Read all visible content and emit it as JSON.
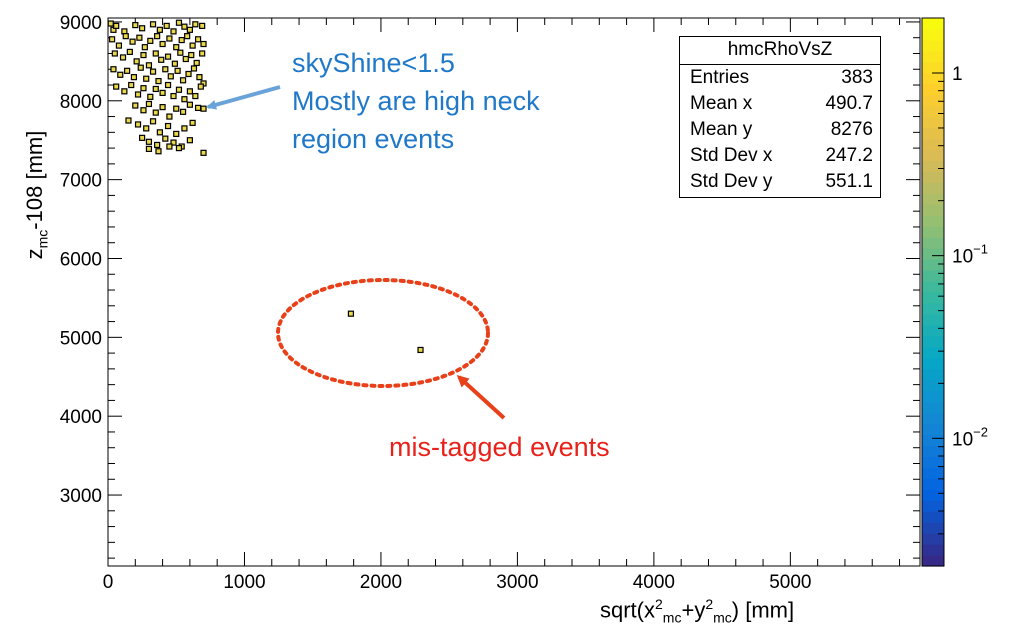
{
  "annotations": {
    "skyshine_line1": "skyShine<1.5",
    "skyshine_line2": "Mostly are high neck",
    "skyshine_line3": "region events",
    "mistagged": "mis-tagged events",
    "arrow_blue_color": "#6aa3d9",
    "arrow_red_color": "#e8411a",
    "ellipse_color": "#e8411a"
  },
  "stats_box": {
    "title": "hmcRhoVsZ",
    "rows": [
      {
        "label": "Entries",
        "value": "383"
      },
      {
        "label": "Mean x",
        "value": "490.7"
      },
      {
        "label": "Mean y",
        "value": "8276"
      },
      {
        "label": "Std Dev x",
        "value": "247.2"
      },
      {
        "label": "Std Dev y",
        "value": "551.1"
      }
    ]
  },
  "chart_data": {
    "type": "scatter",
    "title": "",
    "xlabel": {
      "main": "sqrt(x",
      "sup1": "2",
      "sub1": "mc",
      "mid": "+y",
      "sup2": "2",
      "sub2": "mc",
      "end": ") [mm]"
    },
    "ylabel": {
      "main": "z",
      "sub": "mc",
      "end": "-108 [mm]"
    },
    "xlim": [
      0,
      5950
    ],
    "ylim": [
      2100,
      9050
    ],
    "x_ticks": [
      0,
      1000,
      2000,
      3000,
      4000,
      5000
    ],
    "x_tick_labels": [
      "0",
      "1000",
      "2000",
      "3000",
      "4000",
      "5000"
    ],
    "y_ticks": [
      3000,
      4000,
      5000,
      6000,
      7000,
      8000,
      9000
    ],
    "y_tick_labels": [
      "3000",
      "4000",
      "5000",
      "6000",
      "7000",
      "8000",
      "9000"
    ],
    "colorbar": {
      "scale": "log",
      "range": [
        0.002,
        2
      ],
      "tick_labels": [
        "1",
        "10^-1",
        "10^-2"
      ],
      "tick_values": [
        1,
        0.1,
        0.01
      ],
      "colormap": [
        "#352a87",
        "#0363e1",
        "#1485d4",
        "#06a7c6",
        "#38b99e",
        "#92bf73",
        "#d9ba56",
        "#fcce2e",
        "#f9fb0e"
      ]
    },
    "marker_color": "#e8d84a",
    "cluster": {
      "x_range": [
        10,
        720
      ],
      "y_range": [
        7330,
        9000
      ],
      "points": [
        [
          20,
          8980
        ],
        [
          40,
          8900
        ],
        [
          60,
          8950
        ],
        [
          120,
          8880
        ],
        [
          200,
          8960
        ],
        [
          250,
          8920
        ],
        [
          330,
          8970
        ],
        [
          380,
          8900
        ],
        [
          430,
          8950
        ],
        [
          480,
          8880
        ],
        [
          520,
          8990
        ],
        [
          560,
          8940
        ],
        [
          600,
          8900
        ],
        [
          640,
          8970
        ],
        [
          690,
          8950
        ],
        [
          30,
          8780
        ],
        [
          80,
          8700
        ],
        [
          130,
          8820
        ],
        [
          180,
          8750
        ],
        [
          230,
          8800
        ],
        [
          270,
          8680
        ],
        [
          310,
          8760
        ],
        [
          360,
          8820
        ],
        [
          400,
          8720
        ],
        [
          450,
          8790
        ],
        [
          500,
          8680
        ],
        [
          540,
          8770
        ],
        [
          580,
          8820
        ],
        [
          620,
          8700
        ],
        [
          660,
          8780
        ],
        [
          700,
          8720
        ],
        [
          50,
          8600
        ],
        [
          110,
          8550
        ],
        [
          160,
          8620
        ],
        [
          210,
          8500
        ],
        [
          260,
          8580
        ],
        [
          300,
          8450
        ],
        [
          350,
          8600
        ],
        [
          390,
          8520
        ],
        [
          440,
          8560
        ],
        [
          490,
          8470
        ],
        [
          530,
          8610
        ],
        [
          570,
          8530
        ],
        [
          610,
          8580
        ],
        [
          650,
          8480
        ],
        [
          690,
          8600
        ],
        [
          40,
          8400
        ],
        [
          90,
          8330
        ],
        [
          140,
          8380
        ],
        [
          190,
          8300
        ],
        [
          240,
          8420
        ],
        [
          280,
          8280
        ],
        [
          330,
          8370
        ],
        [
          370,
          8250
        ],
        [
          420,
          8400
        ],
        [
          460,
          8310
        ],
        [
          510,
          8380
        ],
        [
          550,
          8260
        ],
        [
          590,
          8340
        ],
        [
          630,
          8410
        ],
        [
          670,
          8300
        ],
        [
          700,
          8220
        ],
        [
          60,
          8180
        ],
        [
          120,
          8120
        ],
        [
          170,
          8200
        ],
        [
          220,
          8080
        ],
        [
          260,
          8160
        ],
        [
          310,
          8050
        ],
        [
          350,
          8150
        ],
        [
          400,
          8100
        ],
        [
          440,
          8200
        ],
        [
          480,
          8060
        ],
        [
          520,
          8140
        ],
        [
          560,
          8020
        ],
        [
          600,
          8120
        ],
        [
          640,
          8060
        ],
        [
          680,
          8180
        ],
        [
          200,
          7940
        ],
        [
          260,
          7880
        ],
        [
          300,
          7960
        ],
        [
          350,
          7850
        ],
        [
          400,
          7920
        ],
        [
          450,
          7800
        ],
        [
          500,
          7900
        ],
        [
          550,
          7860
        ],
        [
          600,
          7950
        ],
        [
          660,
          7910
        ],
        [
          700,
          7900
        ],
        [
          150,
          7750
        ],
        [
          220,
          7700
        ],
        [
          280,
          7650
        ],
        [
          330,
          7740
        ],
        [
          380,
          7600
        ],
        [
          440,
          7680
        ],
        [
          500,
          7580
        ],
        [
          560,
          7650
        ],
        [
          620,
          7720
        ],
        [
          250,
          7530
        ],
        [
          300,
          7480
        ],
        [
          360,
          7440
        ],
        [
          420,
          7520
        ],
        [
          480,
          7470
        ],
        [
          540,
          7420
        ],
        [
          600,
          7500
        ],
        [
          300,
          7390
        ],
        [
          370,
          7360
        ],
        [
          450,
          7420
        ],
        [
          520,
          7400
        ],
        [
          700,
          7340
        ]
      ]
    },
    "outliers": [
      [
        1780,
        5300
      ],
      [
        2290,
        4840
      ]
    ]
  }
}
